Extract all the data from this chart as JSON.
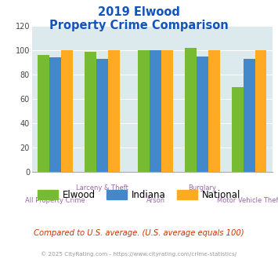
{
  "title_line1": "2019 Elwood",
  "title_line2": "Property Crime Comparison",
  "series": {
    "Elwood": [
      96,
      99,
      100,
      102,
      70
    ],
    "Indiana": [
      94,
      93,
      100,
      95,
      93
    ],
    "National": [
      100,
      100,
      100,
      100,
      100
    ]
  },
  "colors": {
    "Elwood": "#77bb33",
    "Indiana": "#4488cc",
    "National": "#ffaa22"
  },
  "group_positions": [
    0.0,
    1.0,
    2.15,
    3.15,
    4.15
  ],
  "top_labels": [
    "",
    "Larceny & Theft",
    "",
    "Burglary",
    ""
  ],
  "bottom_labels": [
    "All Property Crime",
    "",
    "Arson",
    "",
    "Motor Vehicle Theft"
  ],
  "ylim": [
    0,
    120
  ],
  "yticks": [
    0,
    20,
    40,
    60,
    80,
    100,
    120
  ],
  "plot_bg": "#dce9ed",
  "title_color": "#1155bb",
  "xlabel_color": "#9966aa",
  "footer_text": "Compared to U.S. average. (U.S. average equals 100)",
  "copyright_text": "© 2025 CityRating.com - https://www.cityrating.com/crime-statistics/",
  "footer_color": "#cc3300",
  "copyright_color": "#999999",
  "bar_width": 0.25
}
